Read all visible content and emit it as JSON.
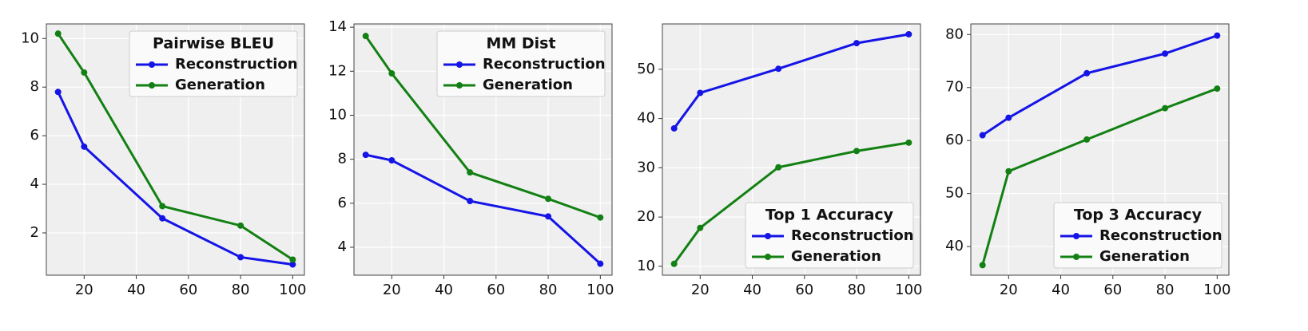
{
  "chart_data": [
    {
      "type": "line",
      "title": "Pairwise BLEU",
      "x": [
        10,
        20,
        50,
        80,
        100
      ],
      "series": [
        {
          "name": "Reconstruction",
          "color": "#1414e6",
          "values": [
            7.8,
            5.55,
            2.6,
            1.0,
            0.7
          ]
        },
        {
          "name": "Generation",
          "color": "#138013",
          "values": [
            10.2,
            8.6,
            3.1,
            2.3,
            0.9
          ]
        }
      ],
      "xlim": [
        5.5,
        104.5
      ],
      "xticks": [
        20,
        40,
        60,
        80,
        100
      ],
      "ylim": [
        0.26,
        10.6
      ],
      "yticks": [
        2,
        4,
        6,
        8,
        10
      ],
      "grid": true,
      "legend": "upper right"
    },
    {
      "type": "line",
      "title": "MM Dist",
      "x": [
        10,
        20,
        50,
        80,
        100
      ],
      "series": [
        {
          "name": "Reconstruction",
          "color": "#1414e6",
          "values": [
            8.2,
            7.95,
            6.1,
            5.4,
            3.25
          ]
        },
        {
          "name": "Generation",
          "color": "#138013",
          "values": [
            13.6,
            11.9,
            7.4,
            6.2,
            5.35
          ]
        }
      ],
      "xlim": [
        5.5,
        104.5
      ],
      "xticks": [
        20,
        40,
        60,
        80,
        100
      ],
      "ylim": [
        2.73,
        14.15
      ],
      "yticks": [
        4,
        6,
        8,
        10,
        12,
        14
      ],
      "grid": true,
      "legend": "upper right"
    },
    {
      "type": "line",
      "title": "Top 1 Accuracy",
      "x": [
        10,
        20,
        50,
        80,
        100
      ],
      "series": [
        {
          "name": "Reconstruction",
          "color": "#1414e6",
          "values": [
            38,
            45.2,
            50.1,
            55.3,
            57.1
          ]
        },
        {
          "name": "Generation",
          "color": "#138013",
          "values": [
            10.5,
            17.8,
            30.1,
            33.4,
            35.1
          ]
        }
      ],
      "xlim": [
        5.5,
        104.5
      ],
      "xticks": [
        20,
        40,
        60,
        80,
        100
      ],
      "ylim": [
        8.2,
        59.2
      ],
      "yticks": [
        10,
        20,
        30,
        40,
        50
      ],
      "grid": true,
      "legend": "lower right"
    },
    {
      "type": "line",
      "title": "Top 3 Accuracy",
      "x": [
        10,
        20,
        50,
        80,
        100
      ],
      "series": [
        {
          "name": "Reconstruction",
          "color": "#1414e6",
          "values": [
            61,
            64.3,
            72.7,
            76.4,
            79.8
          ]
        },
        {
          "name": "Generation",
          "color": "#138013",
          "values": [
            36.5,
            54.2,
            60.2,
            66.1,
            69.8
          ]
        }
      ],
      "xlim": [
        5.5,
        104.5
      ],
      "xticks": [
        20,
        40,
        60,
        80,
        100
      ],
      "ylim": [
        34.6,
        82
      ],
      "yticks": [
        40,
        50,
        60,
        70,
        80
      ],
      "grid": true,
      "legend": "lower right"
    }
  ]
}
